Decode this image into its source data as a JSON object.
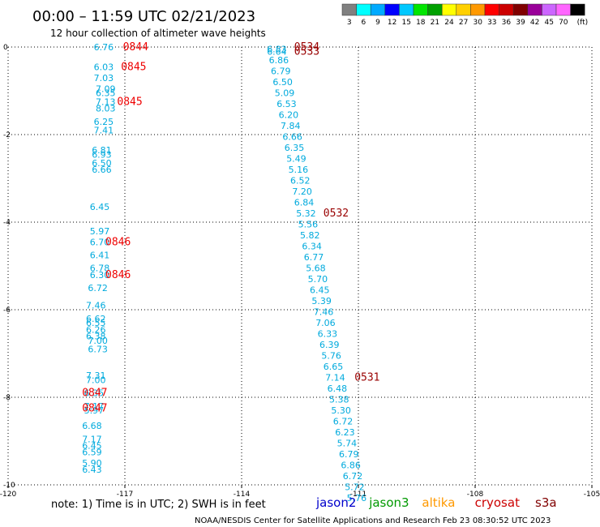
{
  "header": {
    "title": "00:00 – 11:59 UTC 02/21/2023",
    "subtitle": "12 hour collection of altimeter wave heights"
  },
  "legend": {
    "colors": [
      "#808080",
      "#00ffff",
      "#00aaff",
      "#0000ff",
      "#00c8ff",
      "#00e600",
      "#00a000",
      "#ffff00",
      "#ffd000",
      "#ff9900",
      "#ff0000",
      "#cc0000",
      "#800000",
      "#990099",
      "#cc66ff",
      "#ff66ff",
      "#000000"
    ],
    "labels": [
      "3",
      "6",
      "9",
      "12",
      "15",
      "18",
      "21",
      "24",
      "27",
      "30",
      "33",
      "36",
      "39",
      "42",
      "45",
      "70",
      "(ft)"
    ]
  },
  "footer": {
    "note": "note:  1) Time is in UTC; 2) SWH is in feet",
    "satellites": [
      {
        "name": "jason2",
        "color": "#0000cc"
      },
      {
        "name": "jason3",
        "color": "#009900"
      },
      {
        "name": "altika",
        "color": "#ff9900"
      },
      {
        "name": "cryosat",
        "color": "#cc0000"
      },
      {
        "name": "s3a",
        "color": "#800000"
      }
    ],
    "credit": "NOAA/NESDIS Center for Satellite Applications and Research     Feb 23 08:30:52 UTC 2023"
  },
  "chart_data": {
    "type": "scatter",
    "title": "00:00 – 11:59 UTC 02/21/2023",
    "subtitle": "12 hour collection of altimeter wave heights",
    "xlim": [
      -120,
      -105
    ],
    "ylim": [
      -10,
      0
    ],
    "x_ticks": [
      "-120",
      "-117",
      "-114",
      "-111",
      "-108",
      "-105"
    ],
    "y_ticks": [
      "0",
      "-2",
      "-4",
      "-6",
      "-8",
      "-10"
    ],
    "grid": true,
    "series": [
      {
        "color": "#00aadd",
        "points": [
          {
            "x": -117.8,
            "y": 0.0,
            "label": "6.76"
          },
          {
            "x": -117.8,
            "y": -0.45,
            "label": "6.03"
          },
          {
            "x": -117.8,
            "y": -0.7,
            "label": "7.03"
          },
          {
            "x": -117.75,
            "y": -0.95,
            "label": "7.09"
          },
          {
            "x": -117.75,
            "y": -1.05,
            "label": "6.35"
          },
          {
            "x": -117.75,
            "y": -1.25,
            "label": "7.13"
          },
          {
            "x": -117.75,
            "y": -1.4,
            "label": "8.03"
          },
          {
            "x": -117.8,
            "y": -1.7,
            "label": "6.25"
          },
          {
            "x": -117.8,
            "y": -1.9,
            "label": "7.41"
          },
          {
            "x": -117.85,
            "y": -2.35,
            "label": "6.81"
          },
          {
            "x": -117.85,
            "y": -2.45,
            "label": "6.93"
          },
          {
            "x": -117.85,
            "y": -2.65,
            "label": "6.50"
          },
          {
            "x": -117.85,
            "y": -2.8,
            "label": "6.66"
          },
          {
            "x": -117.9,
            "y": -3.65,
            "label": "6.45"
          },
          {
            "x": -117.9,
            "y": -4.2,
            "label": "5.97"
          },
          {
            "x": -117.9,
            "y": -4.45,
            "label": "6.70"
          },
          {
            "x": -117.9,
            "y": -4.75,
            "label": "6.41"
          },
          {
            "x": -117.9,
            "y": -5.05,
            "label": "6.78"
          },
          {
            "x": -117.9,
            "y": -5.2,
            "label": "6.30"
          },
          {
            "x": -117.95,
            "y": -5.5,
            "label": "6.72"
          },
          {
            "x": -118.0,
            "y": -5.9,
            "label": "7.46"
          },
          {
            "x": -118.0,
            "y": -6.2,
            "label": "6.62"
          },
          {
            "x": -118.0,
            "y": -6.3,
            "label": "6.55"
          },
          {
            "x": -118.0,
            "y": -6.45,
            "label": "6.26"
          },
          {
            "x": -118.0,
            "y": -6.6,
            "label": "6.38"
          },
          {
            "x": -117.95,
            "y": -6.7,
            "label": "7.00"
          },
          {
            "x": -117.95,
            "y": -6.9,
            "label": "6.73"
          },
          {
            "x": -118.0,
            "y": -7.5,
            "label": "7.31"
          },
          {
            "x": -118.0,
            "y": -7.6,
            "label": "7.00"
          },
          {
            "x": -118.05,
            "y": -7.9,
            "label": "6.35"
          },
          {
            "x": -118.05,
            "y": -8.2,
            "label": "7.17"
          },
          {
            "x": -118.05,
            "y": -8.3,
            "label": "5.97"
          },
          {
            "x": -118.1,
            "y": -8.65,
            "label": "6.68"
          },
          {
            "x": -118.1,
            "y": -8.95,
            "label": "7.17"
          },
          {
            "x": -118.1,
            "y": -9.1,
            "label": "6.45"
          },
          {
            "x": -118.1,
            "y": -9.25,
            "label": "6.59"
          },
          {
            "x": -118.1,
            "y": -9.5,
            "label": "5.90"
          },
          {
            "x": -118.1,
            "y": -9.65,
            "label": "6.43"
          },
          {
            "x": -113.35,
            "y": -0.05,
            "label": "6.83"
          },
          {
            "x": -113.35,
            "y": -0.1,
            "label": "6.64"
          },
          {
            "x": -113.3,
            "y": -0.3,
            "label": "6.86"
          },
          {
            "x": -113.25,
            "y": -0.55,
            "label": "6.79"
          },
          {
            "x": -113.2,
            "y": -0.8,
            "label": "6.50"
          },
          {
            "x": -113.15,
            "y": -1.05,
            "label": "5.09"
          },
          {
            "x": -113.1,
            "y": -1.3,
            "label": "6.53"
          },
          {
            "x": -113.05,
            "y": -1.55,
            "label": "6.20"
          },
          {
            "x": -113.0,
            "y": -1.8,
            "label": "7.84"
          },
          {
            "x": -112.95,
            "y": -2.05,
            "label": "6.66"
          },
          {
            "x": -112.9,
            "y": -2.3,
            "label": "6.35"
          },
          {
            "x": -112.85,
            "y": -2.55,
            "label": "5.49"
          },
          {
            "x": -112.8,
            "y": -2.8,
            "label": "5.16"
          },
          {
            "x": -112.75,
            "y": -3.05,
            "label": "6.52"
          },
          {
            "x": -112.7,
            "y": -3.3,
            "label": "7.20"
          },
          {
            "x": -112.65,
            "y": -3.55,
            "label": "6.84"
          },
          {
            "x": -112.6,
            "y": -3.8,
            "label": "5.32"
          },
          {
            "x": -112.55,
            "y": -4.05,
            "label": "5.56"
          },
          {
            "x": -112.5,
            "y": -4.3,
            "label": "5.82"
          },
          {
            "x": -112.45,
            "y": -4.55,
            "label": "6.34"
          },
          {
            "x": -112.4,
            "y": -4.8,
            "label": "6.77"
          },
          {
            "x": -112.35,
            "y": -5.05,
            "label": "5.68"
          },
          {
            "x": -112.3,
            "y": -5.3,
            "label": "5.70"
          },
          {
            "x": -112.25,
            "y": -5.55,
            "label": "6.45"
          },
          {
            "x": -112.2,
            "y": -5.8,
            "label": "5.39"
          },
          {
            "x": -112.15,
            "y": -6.05,
            "label": "7.46"
          },
          {
            "x": -112.1,
            "y": -6.3,
            "label": "7.06"
          },
          {
            "x": -112.05,
            "y": -6.55,
            "label": "6.33"
          },
          {
            "x": -112.0,
            "y": -6.8,
            "label": "6.39"
          },
          {
            "x": -111.95,
            "y": -7.05,
            "label": "5.76"
          },
          {
            "x": -111.9,
            "y": -7.3,
            "label": "6.65"
          },
          {
            "x": -111.85,
            "y": -7.55,
            "label": "7.14"
          },
          {
            "x": -111.8,
            "y": -7.8,
            "label": "6.48"
          },
          {
            "x": -111.75,
            "y": -8.05,
            "label": "5.38"
          },
          {
            "x": -111.7,
            "y": -8.3,
            "label": "5.30"
          },
          {
            "x": -111.65,
            "y": -8.55,
            "label": "6.72"
          },
          {
            "x": -111.6,
            "y": -8.8,
            "label": "6.23"
          },
          {
            "x": -111.55,
            "y": -9.05,
            "label": "5.74"
          },
          {
            "x": -111.5,
            "y": -9.3,
            "label": "6.79"
          },
          {
            "x": -111.45,
            "y": -9.55,
            "label": "6.86"
          },
          {
            "x": -111.4,
            "y": -9.8,
            "label": "6.72"
          },
          {
            "x": -111.35,
            "y": -10.05,
            "label": "5.72"
          },
          {
            "x": -111.3,
            "y": -10.3,
            "label": "5.76"
          }
        ]
      }
    ],
    "time_labels": [
      {
        "x": -117.05,
        "y": 0.0,
        "label": "0844",
        "color": "#ee0000"
      },
      {
        "x": -117.1,
        "y": -0.45,
        "label": "0845",
        "color": "#ee0000"
      },
      {
        "x": -117.2,
        "y": -1.25,
        "label": "0845",
        "color": "#ee0000"
      },
      {
        "x": -117.5,
        "y": -4.45,
        "label": "0846",
        "color": "#ee0000"
      },
      {
        "x": -117.5,
        "y": -5.2,
        "label": "0846",
        "color": "#ee0000"
      },
      {
        "x": -118.1,
        "y": -7.9,
        "label": "0847",
        "color": "#ee0000"
      },
      {
        "x": -118.1,
        "y": -8.25,
        "label": "0847",
        "color": "#ee0000"
      },
      {
        "x": -112.65,
        "y": 0.0,
        "label": "0534",
        "color": "#990000"
      },
      {
        "x": -112.65,
        "y": -0.1,
        "label": "0533",
        "color": "#990000"
      },
      {
        "x": -111.9,
        "y": -3.8,
        "label": "0532",
        "color": "#990000"
      },
      {
        "x": -111.1,
        "y": -7.55,
        "label": "0531",
        "color": "#990000"
      }
    ]
  }
}
